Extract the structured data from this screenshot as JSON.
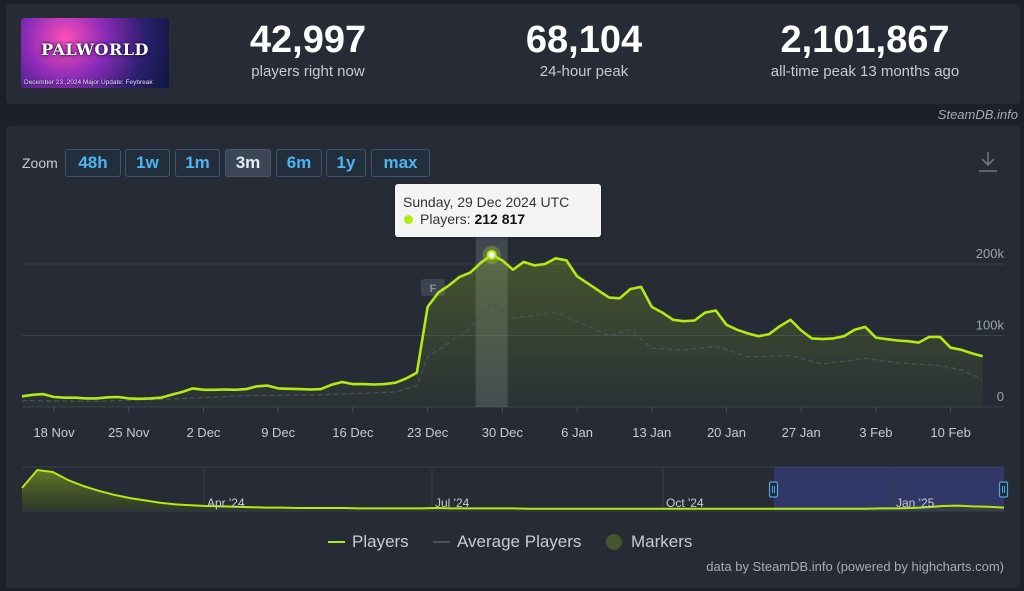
{
  "header": {
    "banner": {
      "logo_text": "PALWORLD",
      "caption": "December 23 ,2024 Major Update: Feybreak"
    },
    "stats": [
      {
        "value": "42,997",
        "label": "players right now"
      },
      {
        "value": "68,104",
        "label": "24-hour peak"
      },
      {
        "value": "2,101,867",
        "label": "all-time peak 13 months ago"
      }
    ],
    "credit": "SteamDB.info"
  },
  "zoom": {
    "label": "Zoom",
    "options": [
      "48h",
      "1w",
      "1m",
      "3m",
      "6m",
      "1y",
      "max"
    ],
    "active": "3m"
  },
  "icons": {
    "download": "download-icon"
  },
  "tooltip": {
    "date": "Sunday, 29 Dec 2024 UTC",
    "series_label": "Players:",
    "value": "212 817"
  },
  "chart_data": {
    "type": "line",
    "x_unit": "date",
    "x_ticks": [
      "18 Nov",
      "25 Nov",
      "2 Dec",
      "9 Dec",
      "16 Dec",
      "23 Dec",
      "30 Dec",
      "6 Jan",
      "13 Jan",
      "20 Jan",
      "27 Jan",
      "3 Feb",
      "10 Feb"
    ],
    "y_ticks": [
      "0",
      "100k",
      "200k"
    ],
    "ylim": [
      0,
      200000
    ],
    "xlim": [
      "2024-11-15",
      "2025-02-15"
    ],
    "series": [
      {
        "name": "Players",
        "color": "#b3ea14",
        "points": [
          [
            "2024-11-15",
            15000
          ],
          [
            "2024-11-16",
            17000
          ],
          [
            "2024-11-17",
            18000
          ],
          [
            "2024-11-18",
            14000
          ],
          [
            "2024-11-19",
            13000
          ],
          [
            "2024-11-20",
            13000
          ],
          [
            "2024-11-21",
            12000
          ],
          [
            "2024-11-22",
            12000
          ],
          [
            "2024-11-23",
            13500
          ],
          [
            "2024-11-24",
            14000
          ],
          [
            "2024-11-25",
            12000
          ],
          [
            "2024-11-26",
            11500
          ],
          [
            "2024-11-27",
            12000
          ],
          [
            "2024-11-28",
            13000
          ],
          [
            "2024-11-29",
            17000
          ],
          [
            "2024-11-30",
            21000
          ],
          [
            "2024-12-01",
            26000
          ],
          [
            "2024-12-02",
            24000
          ],
          [
            "2024-12-03",
            24000
          ],
          [
            "2024-12-04",
            24500
          ],
          [
            "2024-12-05",
            24000
          ],
          [
            "2024-12-06",
            25000
          ],
          [
            "2024-12-07",
            29000
          ],
          [
            "2024-12-08",
            30000
          ],
          [
            "2024-12-09",
            26000
          ],
          [
            "2024-12-10",
            25500
          ],
          [
            "2024-12-11",
            25000
          ],
          [
            "2024-12-12",
            24500
          ],
          [
            "2024-12-13",
            25000
          ],
          [
            "2024-12-14",
            31000
          ],
          [
            "2024-12-15",
            35000
          ],
          [
            "2024-12-16",
            32000
          ],
          [
            "2024-12-17",
            32000
          ],
          [
            "2024-12-18",
            31500
          ],
          [
            "2024-12-19",
            32000
          ],
          [
            "2024-12-20",
            34000
          ],
          [
            "2024-12-21",
            40000
          ],
          [
            "2024-12-22",
            48000
          ],
          [
            "2024-12-23",
            140000
          ],
          [
            "2024-12-24",
            160000
          ],
          [
            "2024-12-25",
            170000
          ],
          [
            "2024-12-26",
            182000
          ],
          [
            "2024-12-27",
            188000
          ],
          [
            "2024-12-28",
            202000
          ],
          [
            "2024-12-29",
            212817
          ],
          [
            "2024-12-30",
            205000
          ],
          [
            "2024-12-31",
            192000
          ],
          [
            "2025-01-01",
            203000
          ],
          [
            "2025-01-02",
            198000
          ],
          [
            "2025-01-03",
            200000
          ],
          [
            "2025-01-04",
            208000
          ],
          [
            "2025-01-05",
            205000
          ],
          [
            "2025-01-06",
            183000
          ],
          [
            "2025-01-07",
            173000
          ],
          [
            "2025-01-08",
            163000
          ],
          [
            "2025-01-09",
            153000
          ],
          [
            "2025-01-10",
            152000
          ],
          [
            "2025-01-11",
            165000
          ],
          [
            "2025-01-12",
            168000
          ],
          [
            "2025-01-13",
            140000
          ],
          [
            "2025-01-14",
            132000
          ],
          [
            "2025-01-15",
            122000
          ],
          [
            "2025-01-16",
            120000
          ],
          [
            "2025-01-17",
            121000
          ],
          [
            "2025-01-18",
            132000
          ],
          [
            "2025-01-19",
            135000
          ],
          [
            "2025-01-20",
            115000
          ],
          [
            "2025-01-21",
            108000
          ],
          [
            "2025-01-22",
            103000
          ],
          [
            "2025-01-23",
            99000
          ],
          [
            "2025-01-24",
            102000
          ],
          [
            "2025-01-25",
            113000
          ],
          [
            "2025-01-26",
            122000
          ],
          [
            "2025-01-27",
            107000
          ],
          [
            "2025-01-28",
            96000
          ],
          [
            "2025-01-29",
            95000
          ],
          [
            "2025-01-30",
            96000
          ],
          [
            "2025-01-31",
            99000
          ],
          [
            "2025-02-01",
            108000
          ],
          [
            "2025-02-02",
            112000
          ],
          [
            "2025-02-03",
            97000
          ],
          [
            "2025-02-04",
            95000
          ],
          [
            "2025-02-05",
            93000
          ],
          [
            "2025-02-06",
            92000
          ],
          [
            "2025-02-07",
            90000
          ],
          [
            "2025-02-08",
            98000
          ],
          [
            "2025-02-09",
            98000
          ],
          [
            "2025-02-10",
            83000
          ],
          [
            "2025-02-11",
            80000
          ],
          [
            "2025-02-12",
            75000
          ],
          [
            "2025-02-13",
            71000
          ]
        ]
      },
      {
        "name": "Average Players",
        "color": "#4a5260",
        "points": [
          [
            "2024-11-15",
            9000
          ],
          [
            "2024-11-22",
            8000
          ],
          [
            "2024-11-29",
            11000
          ],
          [
            "2024-12-06",
            16000
          ],
          [
            "2024-12-13",
            17000
          ],
          [
            "2024-12-20",
            21000
          ],
          [
            "2024-12-22",
            30000
          ],
          [
            "2024-12-23",
            70000
          ],
          [
            "2024-12-25",
            90000
          ],
          [
            "2024-12-27",
            110000
          ],
          [
            "2024-12-29",
            145000
          ],
          [
            "2024-12-31",
            125000
          ],
          [
            "2025-01-02",
            128000
          ],
          [
            "2025-01-04",
            133000
          ],
          [
            "2025-01-06",
            120000
          ],
          [
            "2025-01-09",
            100000
          ],
          [
            "2025-01-11",
            108000
          ],
          [
            "2025-01-13",
            82000
          ],
          [
            "2025-01-16",
            80000
          ],
          [
            "2025-01-19",
            85000
          ],
          [
            "2025-01-22",
            70000
          ],
          [
            "2025-01-26",
            72000
          ],
          [
            "2025-01-29",
            60000
          ],
          [
            "2025-02-02",
            68000
          ],
          [
            "2025-02-05",
            62000
          ],
          [
            "2025-02-09",
            58000
          ],
          [
            "2025-02-11",
            52000
          ],
          [
            "2025-02-13",
            38000
          ]
        ]
      }
    ],
    "highlighted_point": {
      "x": "2024-12-29",
      "y": 212817
    },
    "marker_label": "F",
    "navigator": {
      "labels": [
        "Apr '24",
        "Jul '24",
        "Oct '24",
        "Jan '25"
      ],
      "range": "last 3 months",
      "values": [
        0.55,
        1.0,
        0.95,
        0.75,
        0.6,
        0.48,
        0.38,
        0.3,
        0.24,
        0.18,
        0.14,
        0.12,
        0.1,
        0.09,
        0.08,
        0.07,
        0.06,
        0.06,
        0.05,
        0.05,
        0.05,
        0.05,
        0.04,
        0.04,
        0.04,
        0.04,
        0.04,
        0.05,
        0.04,
        0.04,
        0.04,
        0.04,
        0.04,
        0.03,
        0.03,
        0.03,
        0.03,
        0.03,
        0.03,
        0.03,
        0.03,
        0.03,
        0.03,
        0.03,
        0.03,
        0.03,
        0.03,
        0.03,
        0.03,
        0.03,
        0.03,
        0.03,
        0.03,
        0.03,
        0.03,
        0.03,
        0.04,
        0.04,
        0.05,
        0.07,
        0.1,
        0.11,
        0.09,
        0.08,
        0.06
      ]
    }
  },
  "legend": {
    "players": "Players",
    "average": "Average Players",
    "markers": "Markers",
    "players_color": "#b3ea14",
    "average_color": "#4a5260"
  },
  "footer": {
    "credit": "data by SteamDB.info (powered by highcharts.com)"
  }
}
